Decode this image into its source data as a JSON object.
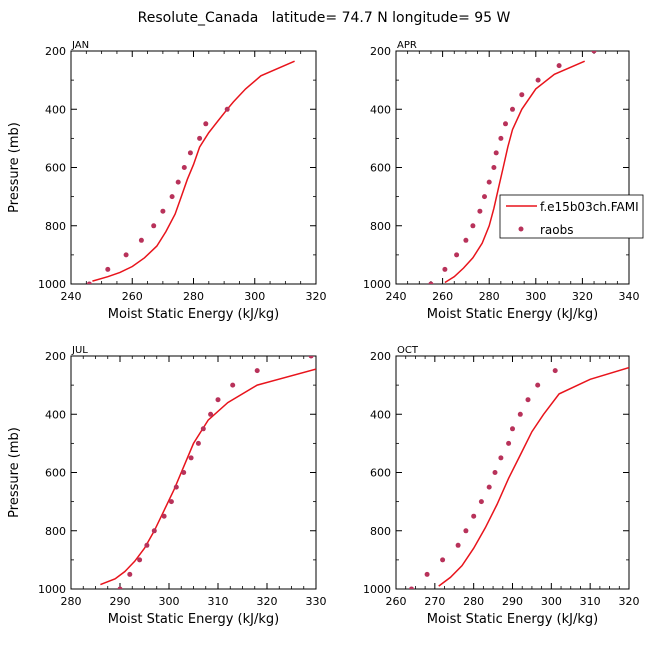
{
  "figure_title": "Resolute_Canada   latitude= 74.7 N longitude= 95 W",
  "colors": {
    "model": "#e8141c",
    "obs": "#b8325a",
    "axis": "#000000"
  },
  "legend": {
    "model_label": "f.e15b03ch.FAMI",
    "obs_label": "raobs"
  },
  "chart_data": [
    {
      "type": "line",
      "panel": "JAN",
      "xlabel": "Moist Static Energy (kJ/kg)",
      "ylabel": "Pressure (mb)",
      "xlim": [
        240,
        320
      ],
      "ylim": [
        1000,
        200
      ],
      "xticks": [
        240,
        260,
        280,
        300,
        320
      ],
      "yticks": [
        200,
        400,
        600,
        800,
        1000
      ],
      "series": [
        {
          "name": "f.e15b03ch.FAMI",
          "kind": "line",
          "x": [
            247,
            252,
            256,
            260,
            264,
            268,
            271,
            274,
            276,
            278,
            280,
            282,
            285,
            288,
            291,
            293,
            297,
            302,
            313
          ],
          "y": [
            990,
            975,
            960,
            940,
            910,
            870,
            820,
            760,
            700,
            640,
            590,
            530,
            480,
            440,
            400,
            375,
            330,
            285,
            235
          ]
        },
        {
          "name": "raobs",
          "kind": "scatter",
          "x": [
            246,
            252,
            258,
            263,
            267,
            270,
            273,
            275,
            277,
            279,
            282,
            284,
            291
          ],
          "y": [
            1000,
            950,
            900,
            850,
            800,
            750,
            700,
            650,
            600,
            550,
            500,
            450,
            400
          ]
        }
      ]
    },
    {
      "type": "line",
      "panel": "APR",
      "xlabel": "Moist Static Energy (kJ/kg)",
      "ylabel": "Pressure (mb)",
      "xlim": [
        240,
        340
      ],
      "ylim": [
        1000,
        200
      ],
      "xticks": [
        240,
        260,
        280,
        300,
        320,
        340
      ],
      "yticks": [
        200,
        400,
        600,
        800,
        1000
      ],
      "series": [
        {
          "name": "f.e15b03ch.FAMI",
          "kind": "line",
          "x": [
            261,
            265,
            269,
            273,
            277,
            280,
            282,
            284,
            286,
            288,
            290,
            294,
            300,
            308,
            321
          ],
          "y": [
            995,
            975,
            945,
            910,
            860,
            800,
            740,
            670,
            600,
            530,
            470,
            400,
            330,
            280,
            235
          ]
        },
        {
          "name": "raobs",
          "kind": "scatter",
          "x": [
            255,
            261,
            266,
            270,
            273,
            276,
            278,
            280,
            282,
            283,
            285,
            287,
            290,
            294,
            301,
            310,
            325
          ],
          "y": [
            1000,
            950,
            900,
            850,
            800,
            750,
            700,
            650,
            600,
            550,
            500,
            450,
            400,
            350,
            300,
            250,
            200
          ]
        }
      ]
    },
    {
      "type": "line",
      "panel": "JUL",
      "xlabel": "Moist Static Energy (kJ/kg)",
      "ylabel": "Pressure (mb)",
      "xlim": [
        280,
        330
      ],
      "ylim": [
        1000,
        200
      ],
      "xticks": [
        280,
        290,
        300,
        310,
        320,
        330
      ],
      "yticks": [
        200,
        400,
        600,
        800,
        1000
      ],
      "series": [
        {
          "name": "f.e15b03ch.FAMI",
          "kind": "line",
          "x": [
            286,
            289,
            291,
            293,
            295,
            297,
            299,
            301,
            303,
            305,
            308,
            312,
            318,
            330
          ],
          "y": [
            985,
            965,
            940,
            905,
            860,
            800,
            730,
            660,
            580,
            500,
            420,
            360,
            300,
            245
          ]
        },
        {
          "name": "raobs",
          "kind": "scatter",
          "x": [
            290,
            292,
            294,
            295.5,
            297,
            299,
            300.5,
            301.5,
            303,
            304.5,
            306,
            307,
            308.5,
            310,
            313,
            318,
            329
          ],
          "y": [
            1000,
            950,
            900,
            850,
            800,
            750,
            700,
            650,
            600,
            550,
            500,
            450,
            400,
            350,
            300,
            250,
            200
          ]
        }
      ]
    },
    {
      "type": "line",
      "panel": "OCT",
      "xlabel": "Moist Static Energy (kJ/kg)",
      "ylabel": "Pressure (mb)",
      "xlim": [
        260,
        320
      ],
      "ylim": [
        1000,
        200
      ],
      "xticks": [
        260,
        270,
        280,
        290,
        300,
        310,
        320
      ],
      "yticks": [
        200,
        400,
        600,
        800,
        1000
      ],
      "series": [
        {
          "name": "f.e15b03ch.FAMI",
          "kind": "line",
          "x": [
            271,
            274,
            277,
            280,
            283,
            286,
            289,
            292,
            295,
            298,
            302,
            310,
            320
          ],
          "y": [
            990,
            960,
            920,
            860,
            790,
            710,
            620,
            540,
            460,
            400,
            330,
            280,
            240
          ]
        },
        {
          "name": "raobs",
          "kind": "scatter",
          "x": [
            264,
            268,
            272,
            276,
            278,
            280,
            282,
            284,
            285.5,
            287,
            289,
            290,
            292,
            294,
            296.5,
            301
          ],
          "y": [
            1000,
            950,
            900,
            850,
            800,
            750,
            700,
            650,
            600,
            550,
            500,
            450,
            400,
            350,
            300,
            250
          ]
        }
      ]
    }
  ]
}
